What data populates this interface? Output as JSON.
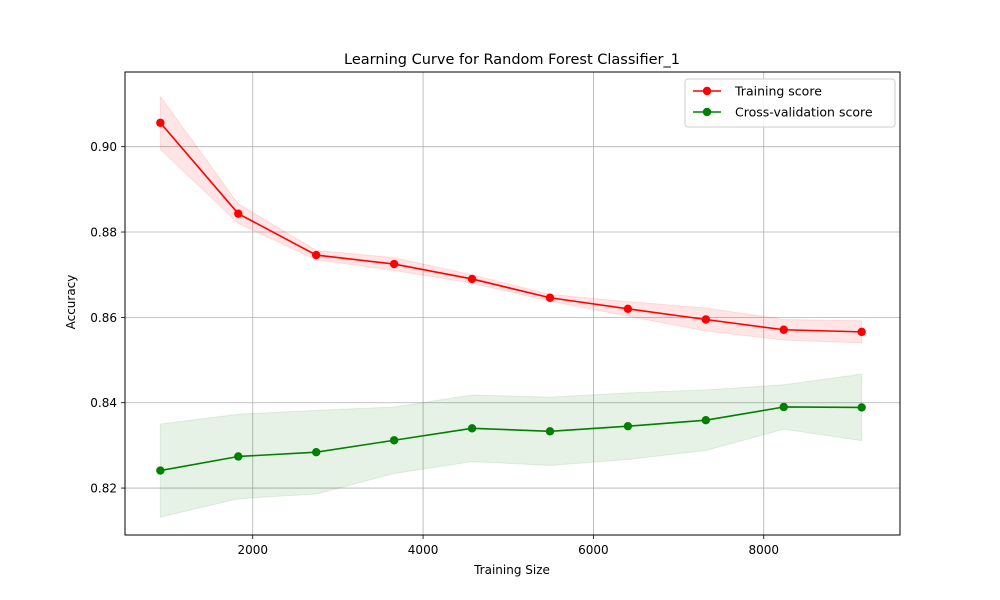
{
  "chart_data": {
    "type": "line",
    "title": "Learning Curve for Random Forest Classifier_1",
    "xlabel": "Training Size",
    "ylabel": "Accuracy",
    "xlim": [
      500,
      9600
    ],
    "ylim": [
      0.809,
      0.9175
    ],
    "x_ticks": [
      2000,
      4000,
      6000,
      8000
    ],
    "x_tick_labels": [
      "2000",
      "4000",
      "6000",
      "8000"
    ],
    "y_ticks": [
      0.82,
      0.84,
      0.86,
      0.88,
      0.9
    ],
    "y_tick_labels": [
      "0.82",
      "0.84",
      "0.86",
      "0.88",
      "0.90"
    ],
    "grid": true,
    "legend_position": "top-right",
    "x": [
      915,
      1830,
      2745,
      3660,
      4575,
      5490,
      6405,
      7320,
      8235,
      9150
    ],
    "series": [
      {
        "name": "Training score",
        "color": "#ff0000",
        "values": [
          0.9056,
          0.8843,
          0.8746,
          0.8725,
          0.869,
          0.8646,
          0.862,
          0.8595,
          0.8571,
          0.8566
        ],
        "band_low": [
          0.8994,
          0.882,
          0.8735,
          0.871,
          0.868,
          0.8638,
          0.8603,
          0.8568,
          0.8547,
          0.854
        ],
        "band_high": [
          0.9118,
          0.8866,
          0.8757,
          0.874,
          0.87,
          0.8654,
          0.8637,
          0.8622,
          0.8595,
          0.8592
        ]
      },
      {
        "name": "Cross-validation score",
        "color": "#008000",
        "values": [
          0.8241,
          0.8274,
          0.8284,
          0.8312,
          0.834,
          0.8333,
          0.8345,
          0.8359,
          0.839,
          0.8389
        ],
        "band_low": [
          0.8132,
          0.8175,
          0.8186,
          0.8234,
          0.8262,
          0.8253,
          0.8267,
          0.8288,
          0.8338,
          0.8311
        ],
        "band_high": [
          0.835,
          0.8373,
          0.8382,
          0.839,
          0.8418,
          0.8413,
          0.8423,
          0.843,
          0.8442,
          0.8467
        ]
      }
    ]
  }
}
